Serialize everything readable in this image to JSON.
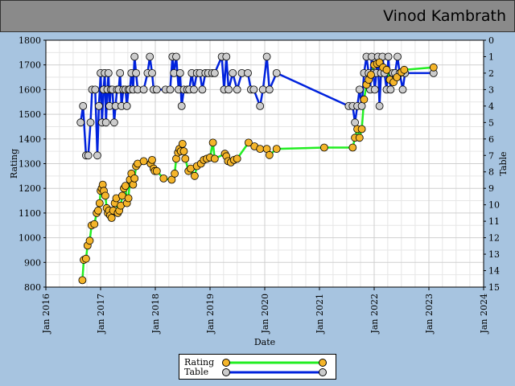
{
  "header": {
    "player_name": "Vinod Kambrath"
  },
  "chart_data": {
    "type": "line",
    "xlabel": "Date",
    "ylabel": "Rating",
    "y2label": "Table",
    "x_ticks": [
      "Jan 2016",
      "Jan 2017",
      "Jan 2018",
      "Jan 2019",
      "Jan 2020",
      "Jan 2021",
      "Jan 2022",
      "Jan 2023",
      "Jan 2024"
    ],
    "xlim": [
      "2016-01-01",
      "2024-01-01"
    ],
    "ylim": [
      800,
      1800
    ],
    "y_ticks": [
      800,
      900,
      1000,
      1100,
      1200,
      1300,
      1400,
      1500,
      1600,
      1700,
      1800
    ],
    "y2lim": [
      15,
      0
    ],
    "y2_ticks": [
      0,
      1,
      2,
      3,
      4,
      5,
      6,
      7,
      8,
      9,
      10,
      11,
      12,
      13,
      14,
      15
    ],
    "grid": true,
    "legend_placement": "bottom-center",
    "series": [
      {
        "name": "Rating",
        "axis": "left",
        "line_color": "#22ee22",
        "marker_color": "#f5b52a",
        "points": [
          [
            "2016-09-01",
            828
          ],
          [
            "2016-09-10",
            910
          ],
          [
            "2016-09-25",
            915
          ],
          [
            "2016-10-05",
            968
          ],
          [
            "2016-10-20",
            988
          ],
          [
            "2016-11-01",
            1050
          ],
          [
            "2016-11-20",
            1055
          ],
          [
            "2016-12-05",
            1100
          ],
          [
            "2016-12-15",
            1110
          ],
          [
            "2016-12-25",
            1140
          ],
          [
            "2017-01-01",
            1190
          ],
          [
            "2017-01-08",
            1200
          ],
          [
            "2017-01-15",
            1215
          ],
          [
            "2017-01-22",
            1190
          ],
          [
            "2017-02-01",
            1170
          ],
          [
            "2017-02-10",
            1120
          ],
          [
            "2017-02-18",
            1100
          ],
          [
            "2017-02-25",
            1110
          ],
          [
            "2017-03-05",
            1090
          ],
          [
            "2017-03-15",
            1080
          ],
          [
            "2017-03-25",
            1110
          ],
          [
            "2017-04-05",
            1140
          ],
          [
            "2017-04-15",
            1160
          ],
          [
            "2017-04-25",
            1100
          ],
          [
            "2017-05-05",
            1110
          ],
          [
            "2017-05-15",
            1130
          ],
          [
            "2017-05-25",
            1170
          ],
          [
            "2017-06-05",
            1200
          ],
          [
            "2017-06-15",
            1210
          ],
          [
            "2017-06-25",
            1140
          ],
          [
            "2017-07-05",
            1160
          ],
          [
            "2017-07-15",
            1235
          ],
          [
            "2017-07-25",
            1260
          ],
          [
            "2017-08-05",
            1215
          ],
          [
            "2017-08-15",
            1240
          ],
          [
            "2017-08-25",
            1290
          ],
          [
            "2017-09-05",
            1300
          ],
          [
            "2017-10-15",
            1310
          ],
          [
            "2017-12-01",
            1300
          ],
          [
            "2017-12-10",
            1315
          ],
          [
            "2017-12-20",
            1280
          ],
          [
            "2017-12-28",
            1270
          ],
          [
            "2018-01-10",
            1270
          ],
          [
            "2018-02-25",
            1240
          ],
          [
            "2018-04-20",
            1235
          ],
          [
            "2018-05-10",
            1260
          ],
          [
            "2018-05-20",
            1320
          ],
          [
            "2018-06-01",
            1345
          ],
          [
            "2018-06-10",
            1360
          ],
          [
            "2018-06-20",
            1350
          ],
          [
            "2018-07-01",
            1380
          ],
          [
            "2018-07-10",
            1350
          ],
          [
            "2018-07-20",
            1320
          ],
          [
            "2018-08-10",
            1270
          ],
          [
            "2018-08-25",
            1280
          ],
          [
            "2018-09-20",
            1250
          ],
          [
            "2018-10-05",
            1290
          ],
          [
            "2018-11-01",
            1300
          ],
          [
            "2018-11-20",
            1315
          ],
          [
            "2018-12-10",
            1320
          ],
          [
            "2019-01-01",
            1325
          ],
          [
            "2019-01-20",
            1385
          ],
          [
            "2019-02-01",
            1320
          ],
          [
            "2019-04-10",
            1340
          ],
          [
            "2019-04-20",
            1330
          ],
          [
            "2019-05-01",
            1310
          ],
          [
            "2019-05-20",
            1305
          ],
          [
            "2019-06-10",
            1315
          ],
          [
            "2019-07-01",
            1320
          ],
          [
            "2019-09-15",
            1385
          ],
          [
            "2019-10-25",
            1370
          ],
          [
            "2019-12-01",
            1360
          ],
          [
            "2020-01-15",
            1360
          ],
          [
            "2020-02-01",
            1335
          ],
          [
            "2020-03-20",
            1360
          ],
          [
            "2021-02-01",
            1365
          ],
          [
            "2021-08-10",
            1365
          ],
          [
            "2021-08-25",
            1405
          ],
          [
            "2021-09-10",
            1440
          ],
          [
            "2021-09-25",
            1405
          ],
          [
            "2021-10-10",
            1440
          ],
          [
            "2021-10-25",
            1560
          ],
          [
            "2021-11-10",
            1620
          ],
          [
            "2021-11-25",
            1640
          ],
          [
            "2021-12-10",
            1660
          ],
          [
            "2022-01-01",
            1700
          ],
          [
            "2022-01-20",
            1705
          ],
          [
            "2022-02-05",
            1710
          ],
          [
            "2022-03-01",
            1690
          ],
          [
            "2022-03-25",
            1680
          ],
          [
            "2022-04-15",
            1640
          ],
          [
            "2022-05-10",
            1630
          ],
          [
            "2022-06-01",
            1650
          ],
          [
            "2022-07-01",
            1670
          ],
          [
            "2022-07-20",
            1680
          ],
          [
            "2023-02-01",
            1690
          ]
        ]
      },
      {
        "name": "Table",
        "axis": "right",
        "line_color": "#0022dd",
        "marker_color": "#cccccc",
        "points": [
          [
            "2016-08-20",
            5
          ],
          [
            "2016-09-05",
            4
          ],
          [
            "2016-09-25",
            7
          ],
          [
            "2016-10-10",
            7
          ],
          [
            "2016-10-25",
            5
          ],
          [
            "2016-11-05",
            3
          ],
          [
            "2016-11-25",
            3
          ],
          [
            "2016-12-10",
            7
          ],
          [
            "2016-12-20",
            4
          ],
          [
            "2017-01-01",
            2
          ],
          [
            "2017-01-10",
            5
          ],
          [
            "2017-01-20",
            3
          ],
          [
            "2017-01-28",
            2
          ],
          [
            "2017-02-05",
            5
          ],
          [
            "2017-02-15",
            3
          ],
          [
            "2017-02-22",
            2
          ],
          [
            "2017-03-01",
            4
          ],
          [
            "2017-03-10",
            3
          ],
          [
            "2017-03-20",
            3
          ],
          [
            "2017-04-01",
            5
          ],
          [
            "2017-04-10",
            4
          ],
          [
            "2017-04-20",
            3
          ],
          [
            "2017-05-01",
            3
          ],
          [
            "2017-05-10",
            2
          ],
          [
            "2017-05-20",
            4
          ],
          [
            "2017-06-01",
            3
          ],
          [
            "2017-06-15",
            3
          ],
          [
            "2017-06-25",
            4
          ],
          [
            "2017-07-05",
            3
          ],
          [
            "2017-07-15",
            3
          ],
          [
            "2017-07-25",
            2
          ],
          [
            "2017-08-05",
            3
          ],
          [
            "2017-08-15",
            1
          ],
          [
            "2017-08-25",
            2
          ],
          [
            "2017-09-05",
            3
          ],
          [
            "2017-10-15",
            3
          ],
          [
            "2017-11-10",
            2
          ],
          [
            "2017-11-25",
            1
          ],
          [
            "2017-12-10",
            2
          ],
          [
            "2017-12-20",
            3
          ],
          [
            "2018-01-10",
            3
          ],
          [
            "2018-03-10",
            3
          ],
          [
            "2018-04-10",
            3
          ],
          [
            "2018-04-25",
            1
          ],
          [
            "2018-05-05",
            2
          ],
          [
            "2018-05-20",
            1
          ],
          [
            "2018-06-05",
            3
          ],
          [
            "2018-06-15",
            2
          ],
          [
            "2018-06-25",
            4
          ],
          [
            "2018-07-10",
            3
          ],
          [
            "2018-08-01",
            3
          ],
          [
            "2018-08-15",
            3
          ],
          [
            "2018-09-01",
            2
          ],
          [
            "2018-09-15",
            3
          ],
          [
            "2018-10-05",
            2
          ],
          [
            "2018-10-25",
            2
          ],
          [
            "2018-11-10",
            3
          ],
          [
            "2018-12-01",
            2
          ],
          [
            "2018-12-20",
            2
          ],
          [
            "2019-01-15",
            2
          ],
          [
            "2019-02-01",
            2
          ],
          [
            "2019-03-20",
            1
          ],
          [
            "2019-04-05",
            3
          ],
          [
            "2019-04-20",
            1
          ],
          [
            "2019-05-05",
            3
          ],
          [
            "2019-06-01",
            2
          ],
          [
            "2019-07-01",
            3
          ],
          [
            "2019-08-01",
            2
          ],
          [
            "2019-09-10",
            2
          ],
          [
            "2019-10-01",
            3
          ],
          [
            "2019-10-20",
            3
          ],
          [
            "2019-12-01",
            4
          ],
          [
            "2019-12-20",
            3
          ],
          [
            "2020-01-15",
            1
          ],
          [
            "2020-02-01",
            3
          ],
          [
            "2020-03-20",
            2
          ],
          [
            "2021-07-15",
            4
          ],
          [
            "2021-08-10",
            4
          ],
          [
            "2021-08-25",
            5
          ],
          [
            "2021-09-10",
            4
          ],
          [
            "2021-09-25",
            3
          ],
          [
            "2021-10-10",
            4
          ],
          [
            "2021-10-25",
            2
          ],
          [
            "2021-11-10",
            1
          ],
          [
            "2021-11-25",
            2
          ],
          [
            "2021-12-05",
            3
          ],
          [
            "2021-12-15",
            1
          ],
          [
            "2021-12-25",
            2
          ],
          [
            "2022-01-05",
            3
          ],
          [
            "2022-01-15",
            2
          ],
          [
            "2022-01-25",
            1
          ],
          [
            "2022-02-05",
            4
          ],
          [
            "2022-02-15",
            2
          ],
          [
            "2022-02-25",
            1
          ],
          [
            "2022-03-10",
            2
          ],
          [
            "2022-03-25",
            3
          ],
          [
            "2022-04-05",
            1
          ],
          [
            "2022-04-20",
            3
          ],
          [
            "2022-05-05",
            2
          ],
          [
            "2022-05-20",
            2
          ],
          [
            "2022-06-05",
            1
          ],
          [
            "2022-06-20",
            2
          ],
          [
            "2022-07-10",
            3
          ],
          [
            "2022-07-25",
            2
          ],
          [
            "2023-02-01",
            2
          ]
        ]
      }
    ]
  }
}
